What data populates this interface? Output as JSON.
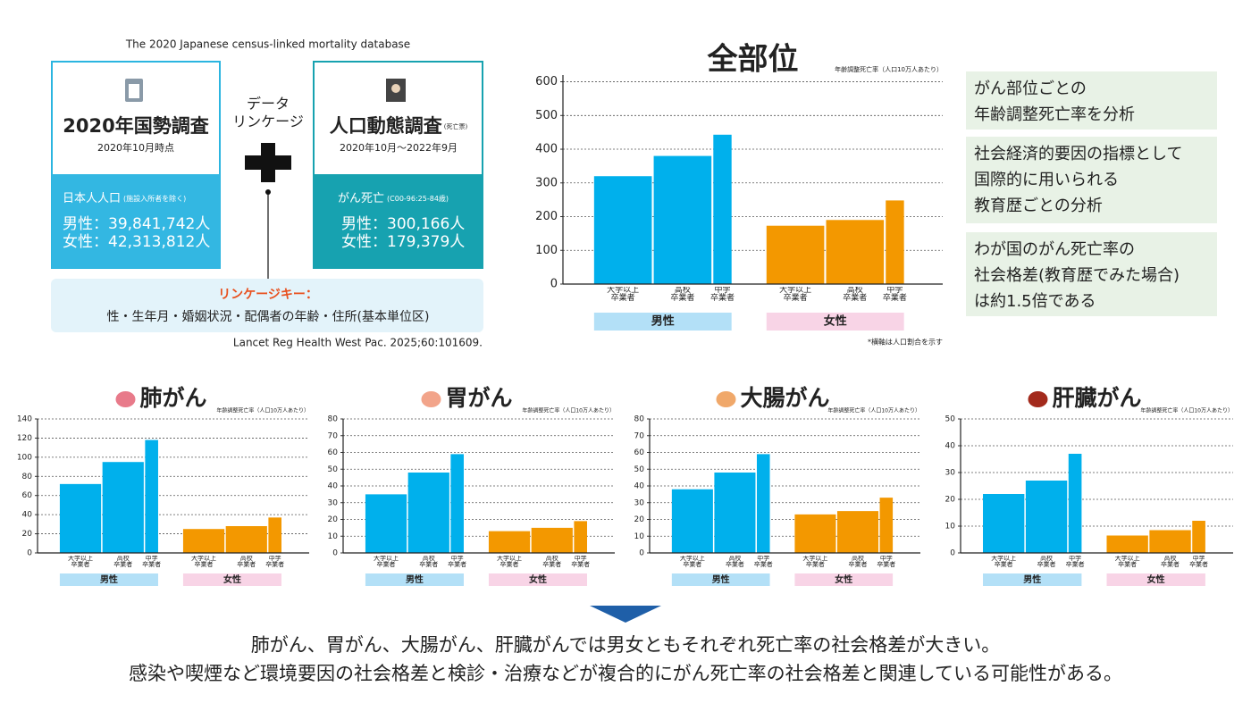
{
  "header": "The 2020 Japanese census-linked mortality database",
  "census": {
    "title": "2020年国勢調査",
    "date": "2020年10月時点",
    "population": "日本人人口",
    "population_note": "(施設入所者を除く)",
    "male": "男性：39,841,742人",
    "female": "女性：42,313,812人"
  },
  "linkage": [
    "データ",
    "リンケージ"
  ],
  "vital": {
    "title": "人口動態調査",
    "title_note": "(死亡票)",
    "date": "2020年10月～2022年9月",
    "deaths": "がん死亡",
    "deaths_note": "(C00-96:25-84歳)",
    "male": "男性：300,166人",
    "female": "女性：179,379人"
  },
  "linkage_key": {
    "title": "リンケージキー：",
    "keys": "性・生年月・婚姻状況・配偶者の年齢・住所(基本単位区)"
  },
  "citation": "Lancet Reg Health West Pac. 2025;60:101609.",
  "panels": [
    [
      "がん部位ごとの",
      "年齢調整死亡率を分析"
    ],
    [
      "社会経済的要因の指標として",
      "国際的に用いられる",
      "教育歴ごとの分析"
    ],
    [
      "わが国のがん死亡率の",
      "社会格差(教育歴でみた場合)",
      "は約1.5倍である"
    ]
  ],
  "conclusion": [
    "肺がん、胃がん、大腸がん、肝臓がんでは男女ともそれぞれ死亡率の社会格差が大きい。",
    "感染や喫煙など環境要因の社会格差と検診・治療などが複合的にがん死亡率の社会格差と関連している可能性がある。"
  ],
  "chart_data": [
    {
      "type": "bar",
      "title": "全部位",
      "y_label": "年齢調整死亡率（人口10万人あたり）",
      "note": "*横軸は人口割合を示す",
      "categories": [
        "大学以上\n卒業者",
        "高校\n卒業者",
        "中学\n卒業者"
      ],
      "series": [
        {
          "name": "男性",
          "color": "#00b0ec",
          "band_color": "#b3e0f7",
          "values": [
            320,
            380,
            443
          ]
        },
        {
          "name": "女性",
          "color": "#f39800",
          "band_color": "#f8d4e6",
          "values": [
            173,
            190,
            248
          ]
        }
      ],
      "ylim": [
        0,
        620
      ],
      "yticks": [
        0,
        100,
        200,
        300,
        400,
        500,
        600
      ],
      "grid": true
    },
    {
      "type": "bar",
      "title": "肺がん",
      "y_label": "年齢調整死亡率（人口10万人あたり）",
      "categories": [
        "大学以上\n卒業者",
        "高校\n卒業者",
        "中学\n卒業者"
      ],
      "series": [
        {
          "name": "男性",
          "color": "#00b0ec",
          "band_color": "#b3e0f7",
          "values": [
            72,
            95,
            118
          ]
        },
        {
          "name": "女性",
          "color": "#f39800",
          "band_color": "#f8d4e6",
          "values": [
            25,
            28,
            37
          ]
        }
      ],
      "ylim": [
        0,
        140
      ],
      "yticks": [
        0,
        20,
        40,
        60,
        80,
        100,
        120,
        140
      ],
      "grid": true
    },
    {
      "type": "bar",
      "title": "胃がん",
      "y_label": "年齢調整死亡率（人口10万人あたり）",
      "categories": [
        "大学以上\n卒業者",
        "高校\n卒業者",
        "中学\n卒業者"
      ],
      "series": [
        {
          "name": "男性",
          "color": "#00b0ec",
          "band_color": "#b3e0f7",
          "values": [
            35,
            48,
            59
          ]
        },
        {
          "name": "女性",
          "color": "#f39800",
          "band_color": "#f8d4e6",
          "values": [
            13,
            15,
            19
          ]
        }
      ],
      "ylim": [
        0,
        80
      ],
      "yticks": [
        0,
        10,
        20,
        30,
        40,
        50,
        60,
        70,
        80
      ],
      "grid": true
    },
    {
      "type": "bar",
      "title": "大腸がん",
      "y_label": "年齢調整死亡率（人口10万人あたり）",
      "categories": [
        "大学以上\n卒業者",
        "高校\n卒業者",
        "中学\n卒業者"
      ],
      "series": [
        {
          "name": "男性",
          "color": "#00b0ec",
          "band_color": "#b3e0f7",
          "values": [
            38,
            48,
            59
          ]
        },
        {
          "name": "女性",
          "color": "#f39800",
          "band_color": "#f8d4e6",
          "values": [
            23,
            25,
            33
          ]
        }
      ],
      "ylim": [
        0,
        80
      ],
      "yticks": [
        0,
        10,
        20,
        30,
        40,
        50,
        60,
        70,
        80
      ],
      "grid": true
    },
    {
      "type": "bar",
      "title": "肝臓がん",
      "y_label": "年齢調整死亡率（人口10万人あたり）",
      "categories": [
        "大学以上\n卒業者",
        "高校\n卒業者",
        "中学\n卒業者"
      ],
      "series": [
        {
          "name": "男性",
          "color": "#00b0ec",
          "band_color": "#b3e0f7",
          "values": [
            22,
            27,
            37
          ]
        },
        {
          "name": "女性",
          "color": "#f39800",
          "band_color": "#f8d4e6",
          "values": [
            6.5,
            8.5,
            12
          ]
        }
      ],
      "ylim": [
        0,
        50
      ],
      "yticks": [
        0,
        10,
        20,
        30,
        40,
        50
      ],
      "grid": true
    }
  ]
}
